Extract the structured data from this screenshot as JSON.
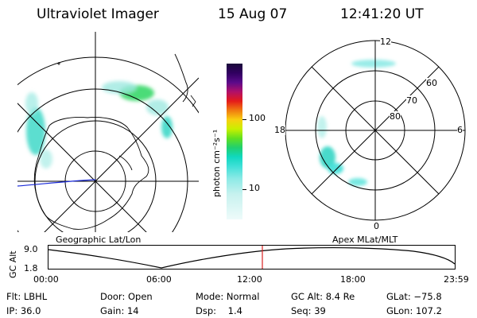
{
  "header": {
    "title": "Ultraviolet Imager",
    "date": "15 Aug 07",
    "time": "12:41:20 UT"
  },
  "left_panel": {
    "title": "Geographic Lat/Lon"
  },
  "right_panel": {
    "title": "Apex MLat/MLT",
    "mlt_labels": [
      "12",
      "18",
      "6",
      "0"
    ],
    "lat_labels": [
      "60",
      "70",
      "80"
    ]
  },
  "colorbar": {
    "label": "photon cm⁻²s⁻¹",
    "ticks": [
      "100",
      "10"
    ]
  },
  "altitude_plot": {
    "ylabel": "GC Alt",
    "yticks": [
      "9.0",
      "1.8"
    ],
    "xticks": [
      "00:00",
      "06:00",
      "12:00",
      "18:00",
      "23:59"
    ],
    "current_time_marker": "12:41"
  },
  "footer": {
    "row1": [
      {
        "label": "Flt:",
        "value": "LBHL"
      },
      {
        "label": "Door:",
        "value": "Open"
      },
      {
        "label": "Mode:",
        "value": "Normal"
      },
      {
        "label": "GC Alt:",
        "value": "8.4 Re"
      },
      {
        "label": "GLat:",
        "value": "−75.8"
      }
    ],
    "row2": [
      {
        "label": "IP:",
        "value": "36.0"
      },
      {
        "label": "Gain:",
        "value": "14"
      },
      {
        "label": "Dsp:",
        "value": "1.4"
      },
      {
        "label": "Seq:",
        "value": "39"
      },
      {
        "label": "GLon:",
        "value": "107.2"
      }
    ]
  },
  "colors": {
    "aurora_low": "#3fd8c8",
    "aurora_high": "#38d86a",
    "track_line": "#1a2ad8",
    "time_marker": "#d82020"
  }
}
